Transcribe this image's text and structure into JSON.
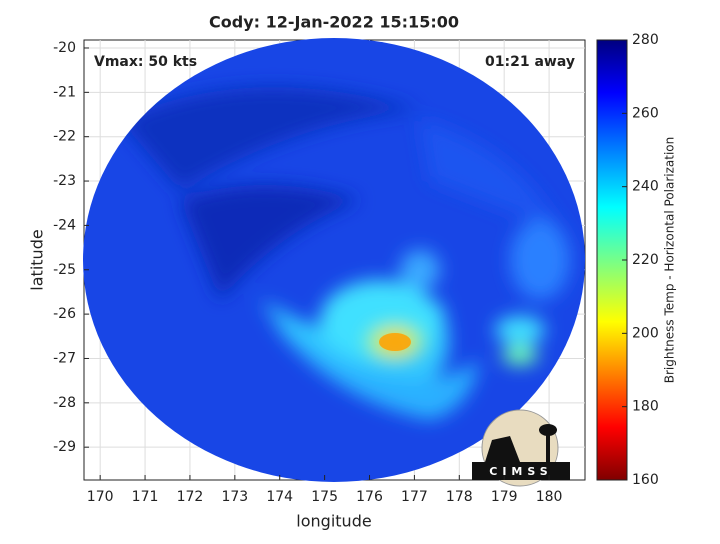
{
  "chart_data": {
    "type": "swath",
    "title": "Cody: 12-Jan-2022 15:15:00",
    "annotations": [
      "Vmax: 50 kts",
      "01:21 away"
    ],
    "x_label": "longitude",
    "y_label": "latitude",
    "xlim": [
      169.64,
      180.8
    ],
    "xticks": [
      170,
      171,
      172,
      173,
      174,
      175,
      176,
      177,
      178,
      179,
      180
    ],
    "ylim": [
      -29.74,
      -19.82
    ],
    "yticks": [
      -20,
      -21,
      -22,
      -23,
      -24,
      -25,
      -26,
      -27,
      -28,
      -29
    ],
    "grid": true,
    "colorbar": {
      "label": "Brightness Temp - Horizontal Polarization",
      "lim": [
        160,
        280
      ],
      "ticks": [
        160,
        180,
        200,
        220,
        240,
        260,
        280
      ]
    },
    "logo": "CIMSS"
  }
}
